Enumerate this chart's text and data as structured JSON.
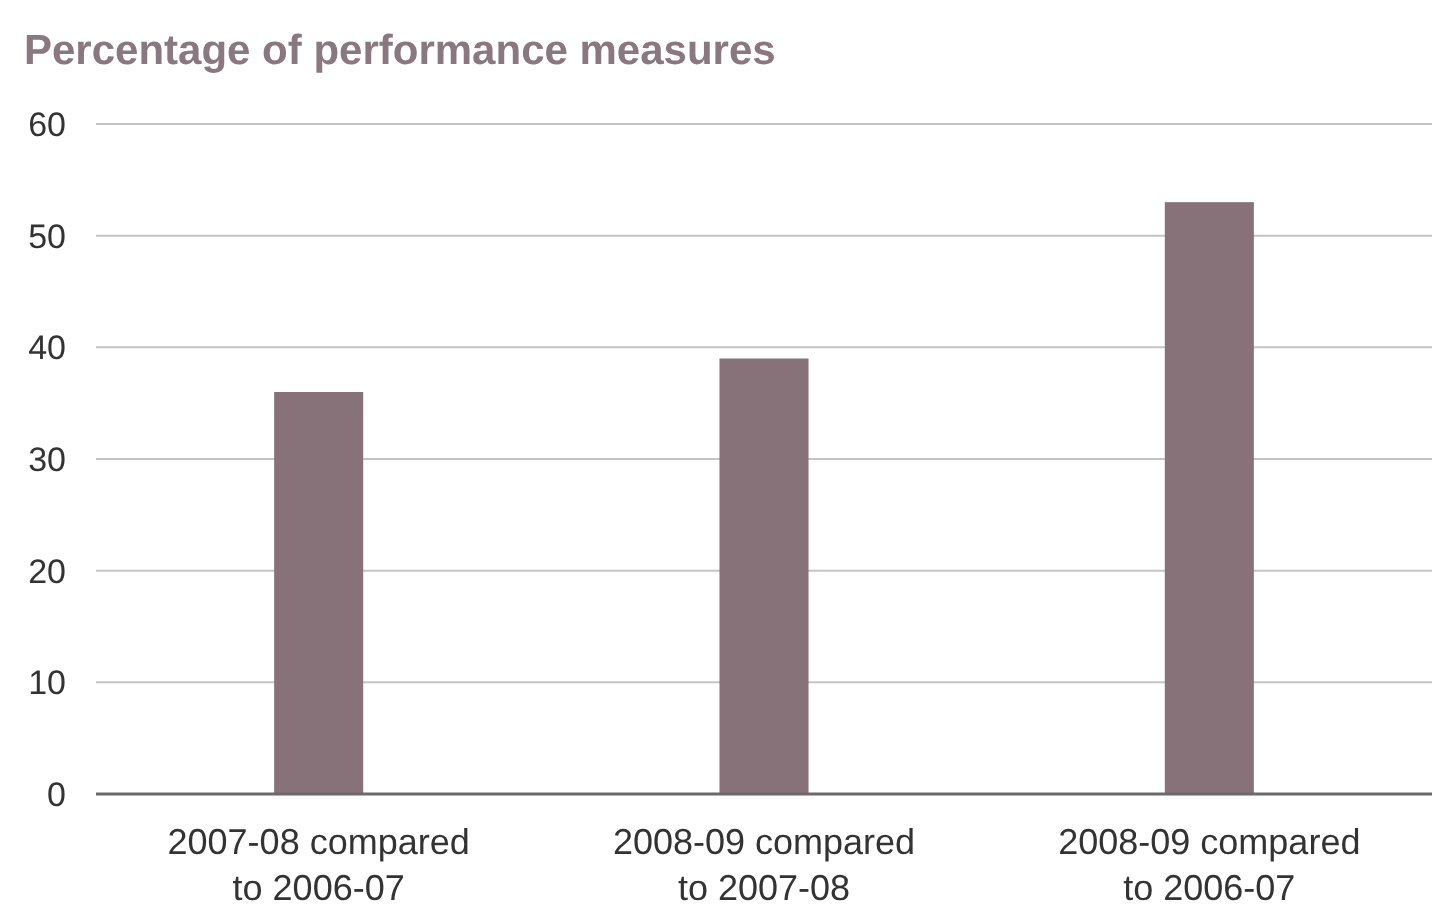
{
  "chart_data": {
    "type": "bar",
    "title": "Percentage of performance measures",
    "categories": [
      "2007-08 compared to 2006-07",
      "2008-09 compared to 2007-08",
      "2008-09 compared to 2006-07"
    ],
    "values": [
      36,
      39,
      53
    ],
    "color": "#88727a",
    "ylim": [
      0,
      60
    ],
    "yticks": [
      0,
      10,
      20,
      30,
      40,
      50,
      60
    ],
    "grid": "y"
  }
}
